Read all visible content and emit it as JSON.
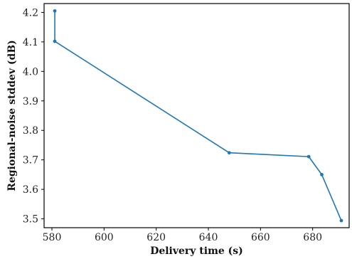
{
  "chart_data": {
    "type": "line",
    "title": "",
    "xlabel": "Delivery time (s)",
    "ylabel": "Regional-noise stddev (dB)",
    "xlim": [
      577,
      694
    ],
    "ylim": [
      3.47,
      4.23
    ],
    "xticks": [
      580,
      600,
      620,
      640,
      660,
      680
    ],
    "yticks": [
      3.5,
      3.6,
      3.7,
      3.8,
      3.9,
      4.0,
      4.1,
      4.2
    ],
    "xtick_labels": [
      "580",
      "600",
      "620",
      "640",
      "660",
      "680"
    ],
    "ytick_labels": [
      "3.5",
      "3.6",
      "3.7",
      "3.8",
      "3.9",
      "4.0",
      "4.1",
      "4.2"
    ],
    "grid": false,
    "legend": "none",
    "series": [
      {
        "color": "#1f77b4",
        "points": [
          {
            "x": 581.1,
            "y": 4.205
          },
          {
            "x": 581.1,
            "y": 4.102
          },
          {
            "x": 648.0,
            "y": 3.724
          },
          {
            "x": 678.5,
            "y": 3.711
          },
          {
            "x": 683.5,
            "y": 3.65
          },
          {
            "x": 691.0,
            "y": 3.494
          }
        ]
      }
    ]
  }
}
